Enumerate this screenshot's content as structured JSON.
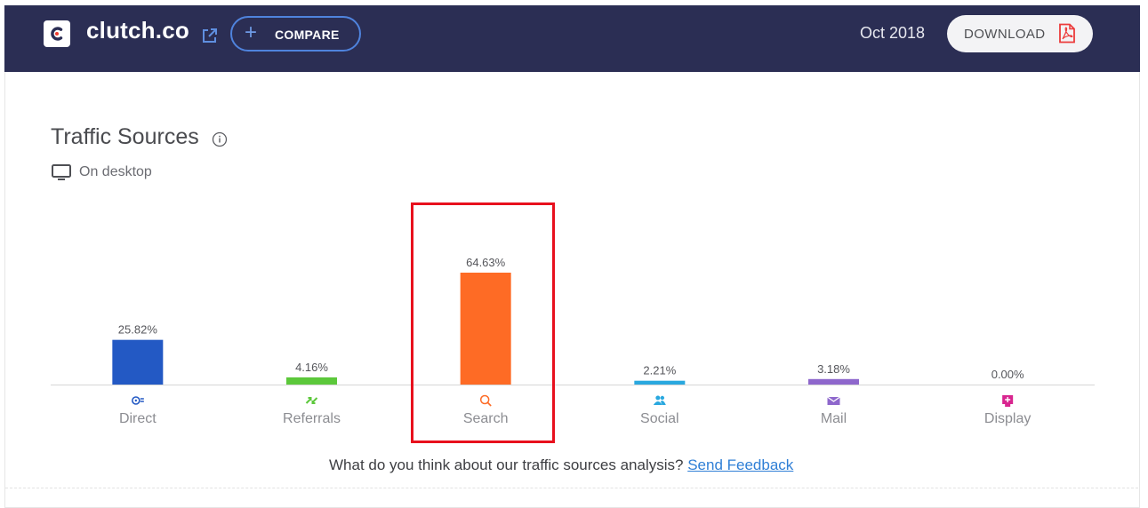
{
  "header": {
    "site": "clutch.co",
    "compare_label": "COMPARE",
    "period": "Oct 2018",
    "download_label": "DOWNLOAD"
  },
  "section": {
    "title": "Traffic Sources",
    "device_label": "On desktop"
  },
  "chart_data": {
    "type": "bar",
    "title": "Traffic Sources",
    "categories": [
      "Direct",
      "Referrals",
      "Search",
      "Social",
      "Mail",
      "Display"
    ],
    "values": [
      25.82,
      4.16,
      64.63,
      2.21,
      3.18,
      0.0
    ],
    "value_labels": [
      "25.82%",
      "4.16%",
      "64.63%",
      "2.21%",
      "3.18%",
      "0.00%"
    ],
    "colors": [
      "#2359c4",
      "#5cc83b",
      "#fe6b25",
      "#29a8df",
      "#8e67cc",
      "#d8258f"
    ],
    "icons": [
      "direct-icon",
      "referrals-icon",
      "search-icon",
      "social-icon",
      "mail-icon",
      "display-icon"
    ],
    "ylim": [
      0,
      100
    ],
    "grid": false,
    "highlighted_category": "Search"
  },
  "feedback": {
    "question": "What do you think about our traffic sources analysis?",
    "link_label": "Send Feedback"
  }
}
